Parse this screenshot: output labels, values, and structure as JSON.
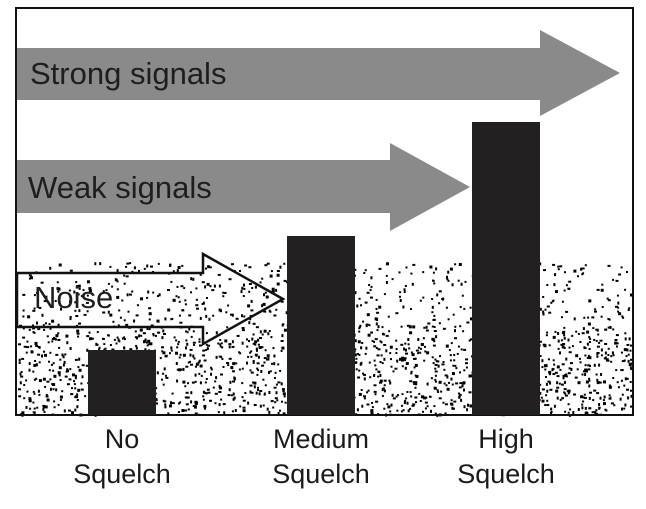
{
  "arrows": {
    "strong": "Strong signals",
    "weak": "Weak signals",
    "noise": "Noise"
  },
  "categories": [
    {
      "line1": "No",
      "line2": "Squelch",
      "level": "none"
    },
    {
      "line1": "Medium",
      "line2": "Squelch",
      "level": "medium"
    },
    {
      "line1": "High",
      "line2": "Squelch",
      "level": "high"
    }
  ],
  "colors": {
    "signal_arrow": "#8a8a8a",
    "bar": "#222020",
    "noise_dots": "#000000"
  }
}
